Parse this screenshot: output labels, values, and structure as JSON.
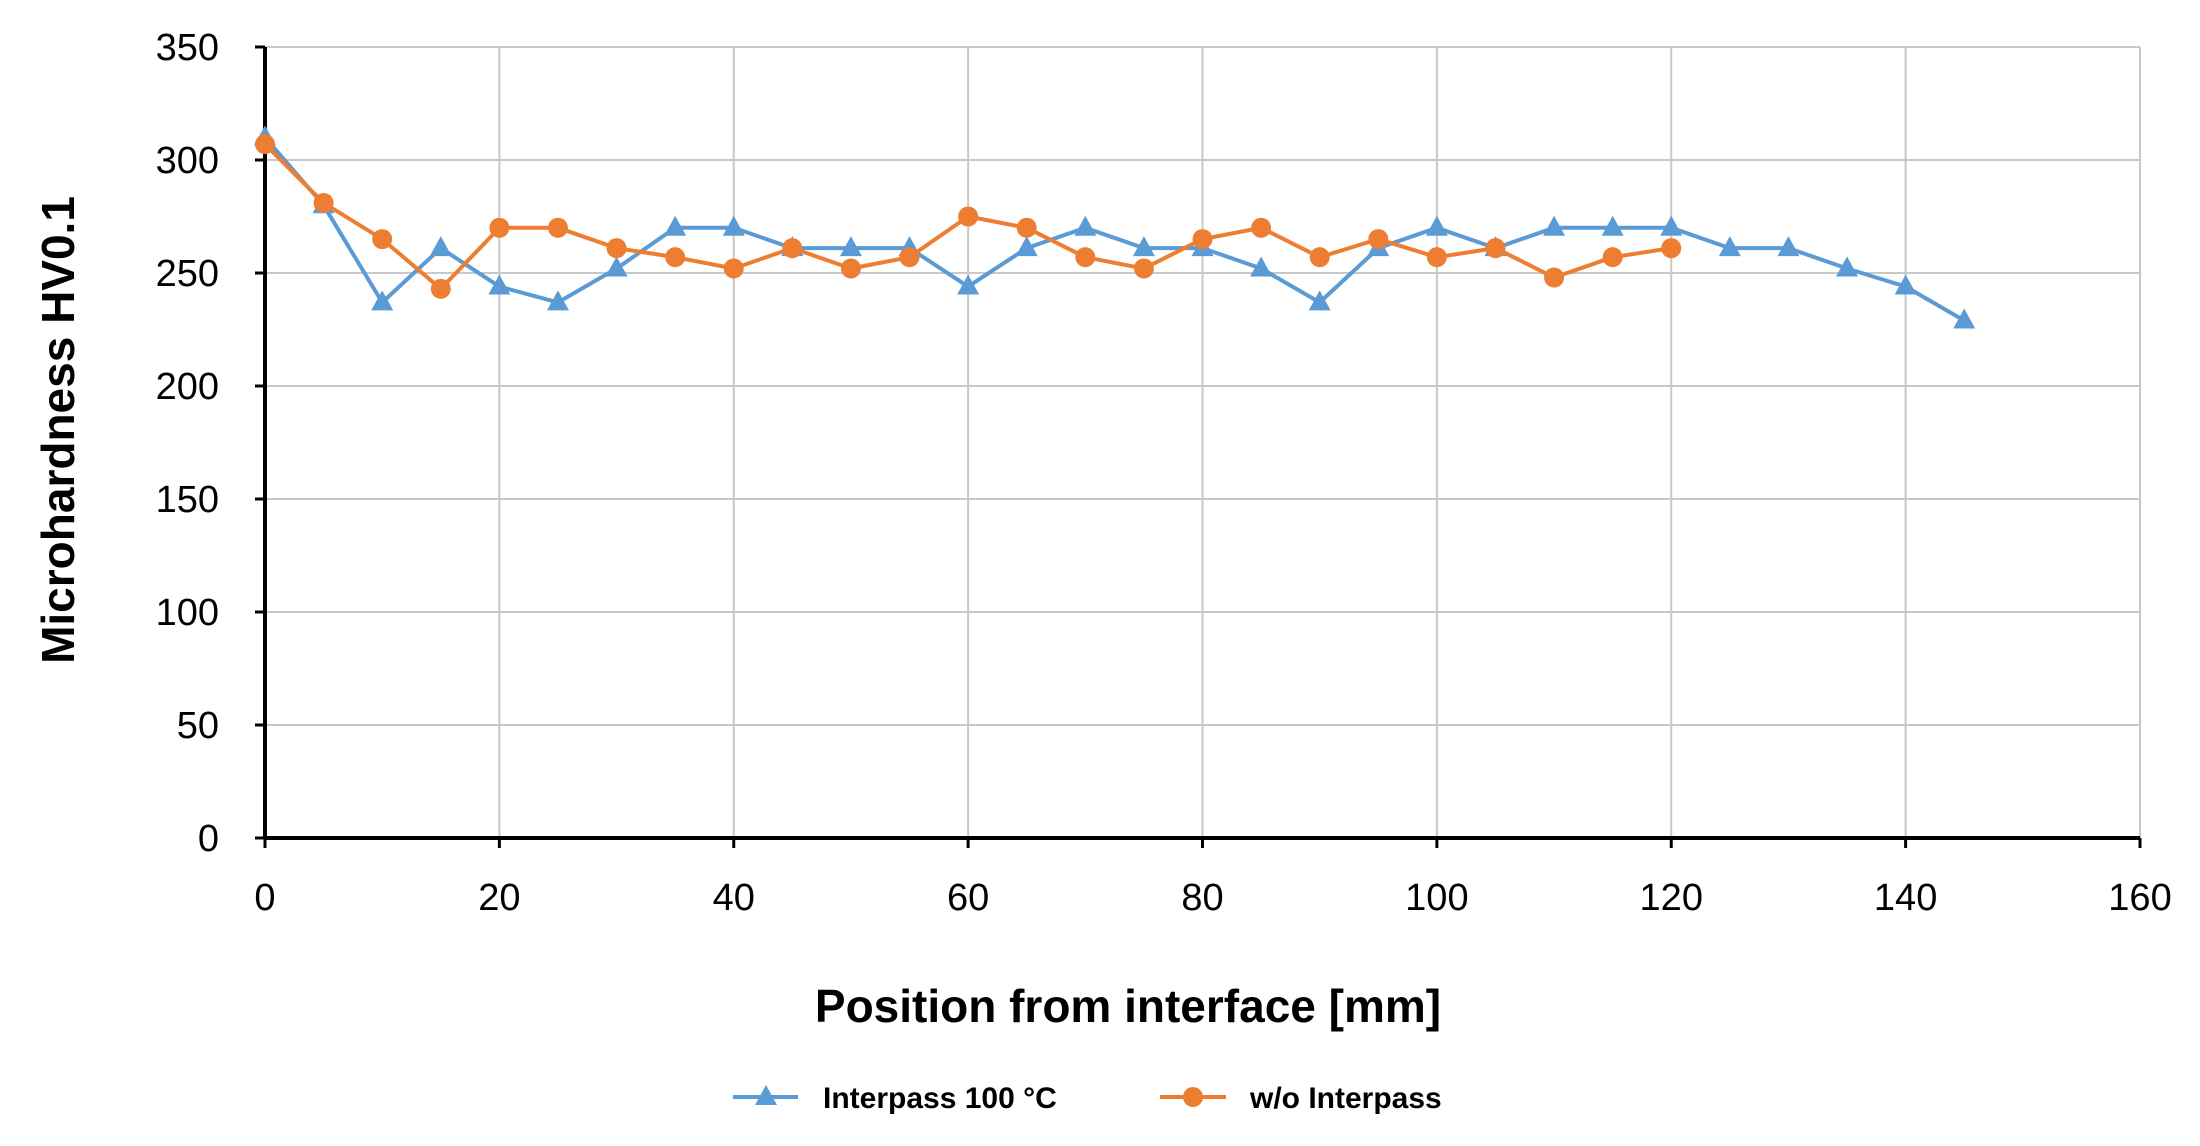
{
  "chart_data": {
    "type": "line",
    "title": "",
    "xlabel": "Position from interface [mm]",
    "ylabel": "Microhardness HV0.1",
    "xlim": [
      0,
      160
    ],
    "ylim": [
      0,
      350
    ],
    "xticks": [
      0,
      20,
      40,
      60,
      80,
      100,
      120,
      140,
      160
    ],
    "yticks": [
      0,
      50,
      100,
      150,
      200,
      250,
      300,
      350
    ],
    "grid": true,
    "legend_position": "bottom",
    "series": [
      {
        "name": "Interpass 100 °C",
        "color": "#5B9BD5",
        "marker": "triangle",
        "x": [
          0,
          5,
          10,
          15,
          20,
          25,
          30,
          35,
          40,
          45,
          50,
          55,
          60,
          65,
          70,
          75,
          80,
          85,
          90,
          95,
          100,
          105,
          110,
          115,
          120,
          125,
          130,
          135,
          140,
          145
        ],
        "y": [
          310,
          280,
          237,
          261,
          244,
          237,
          252,
          270,
          270,
          261,
          261,
          261,
          244,
          261,
          270,
          261,
          261,
          252,
          237,
          261,
          270,
          261,
          270,
          270,
          270,
          261,
          261,
          252,
          244,
          229
        ]
      },
      {
        "name": "w/o Interpass",
        "color": "#ED7D31",
        "marker": "circle",
        "x": [
          0,
          5,
          10,
          15,
          20,
          25,
          30,
          35,
          40,
          45,
          50,
          55,
          60,
          65,
          70,
          75,
          80,
          85,
          90,
          95,
          100,
          105,
          110,
          115,
          120
        ],
        "y": [
          307,
          281,
          265,
          243,
          270,
          270,
          261,
          257,
          252,
          261,
          252,
          257,
          275,
          270,
          257,
          252,
          265,
          270,
          257,
          265,
          257,
          261,
          248,
          257,
          261
        ]
      }
    ]
  }
}
